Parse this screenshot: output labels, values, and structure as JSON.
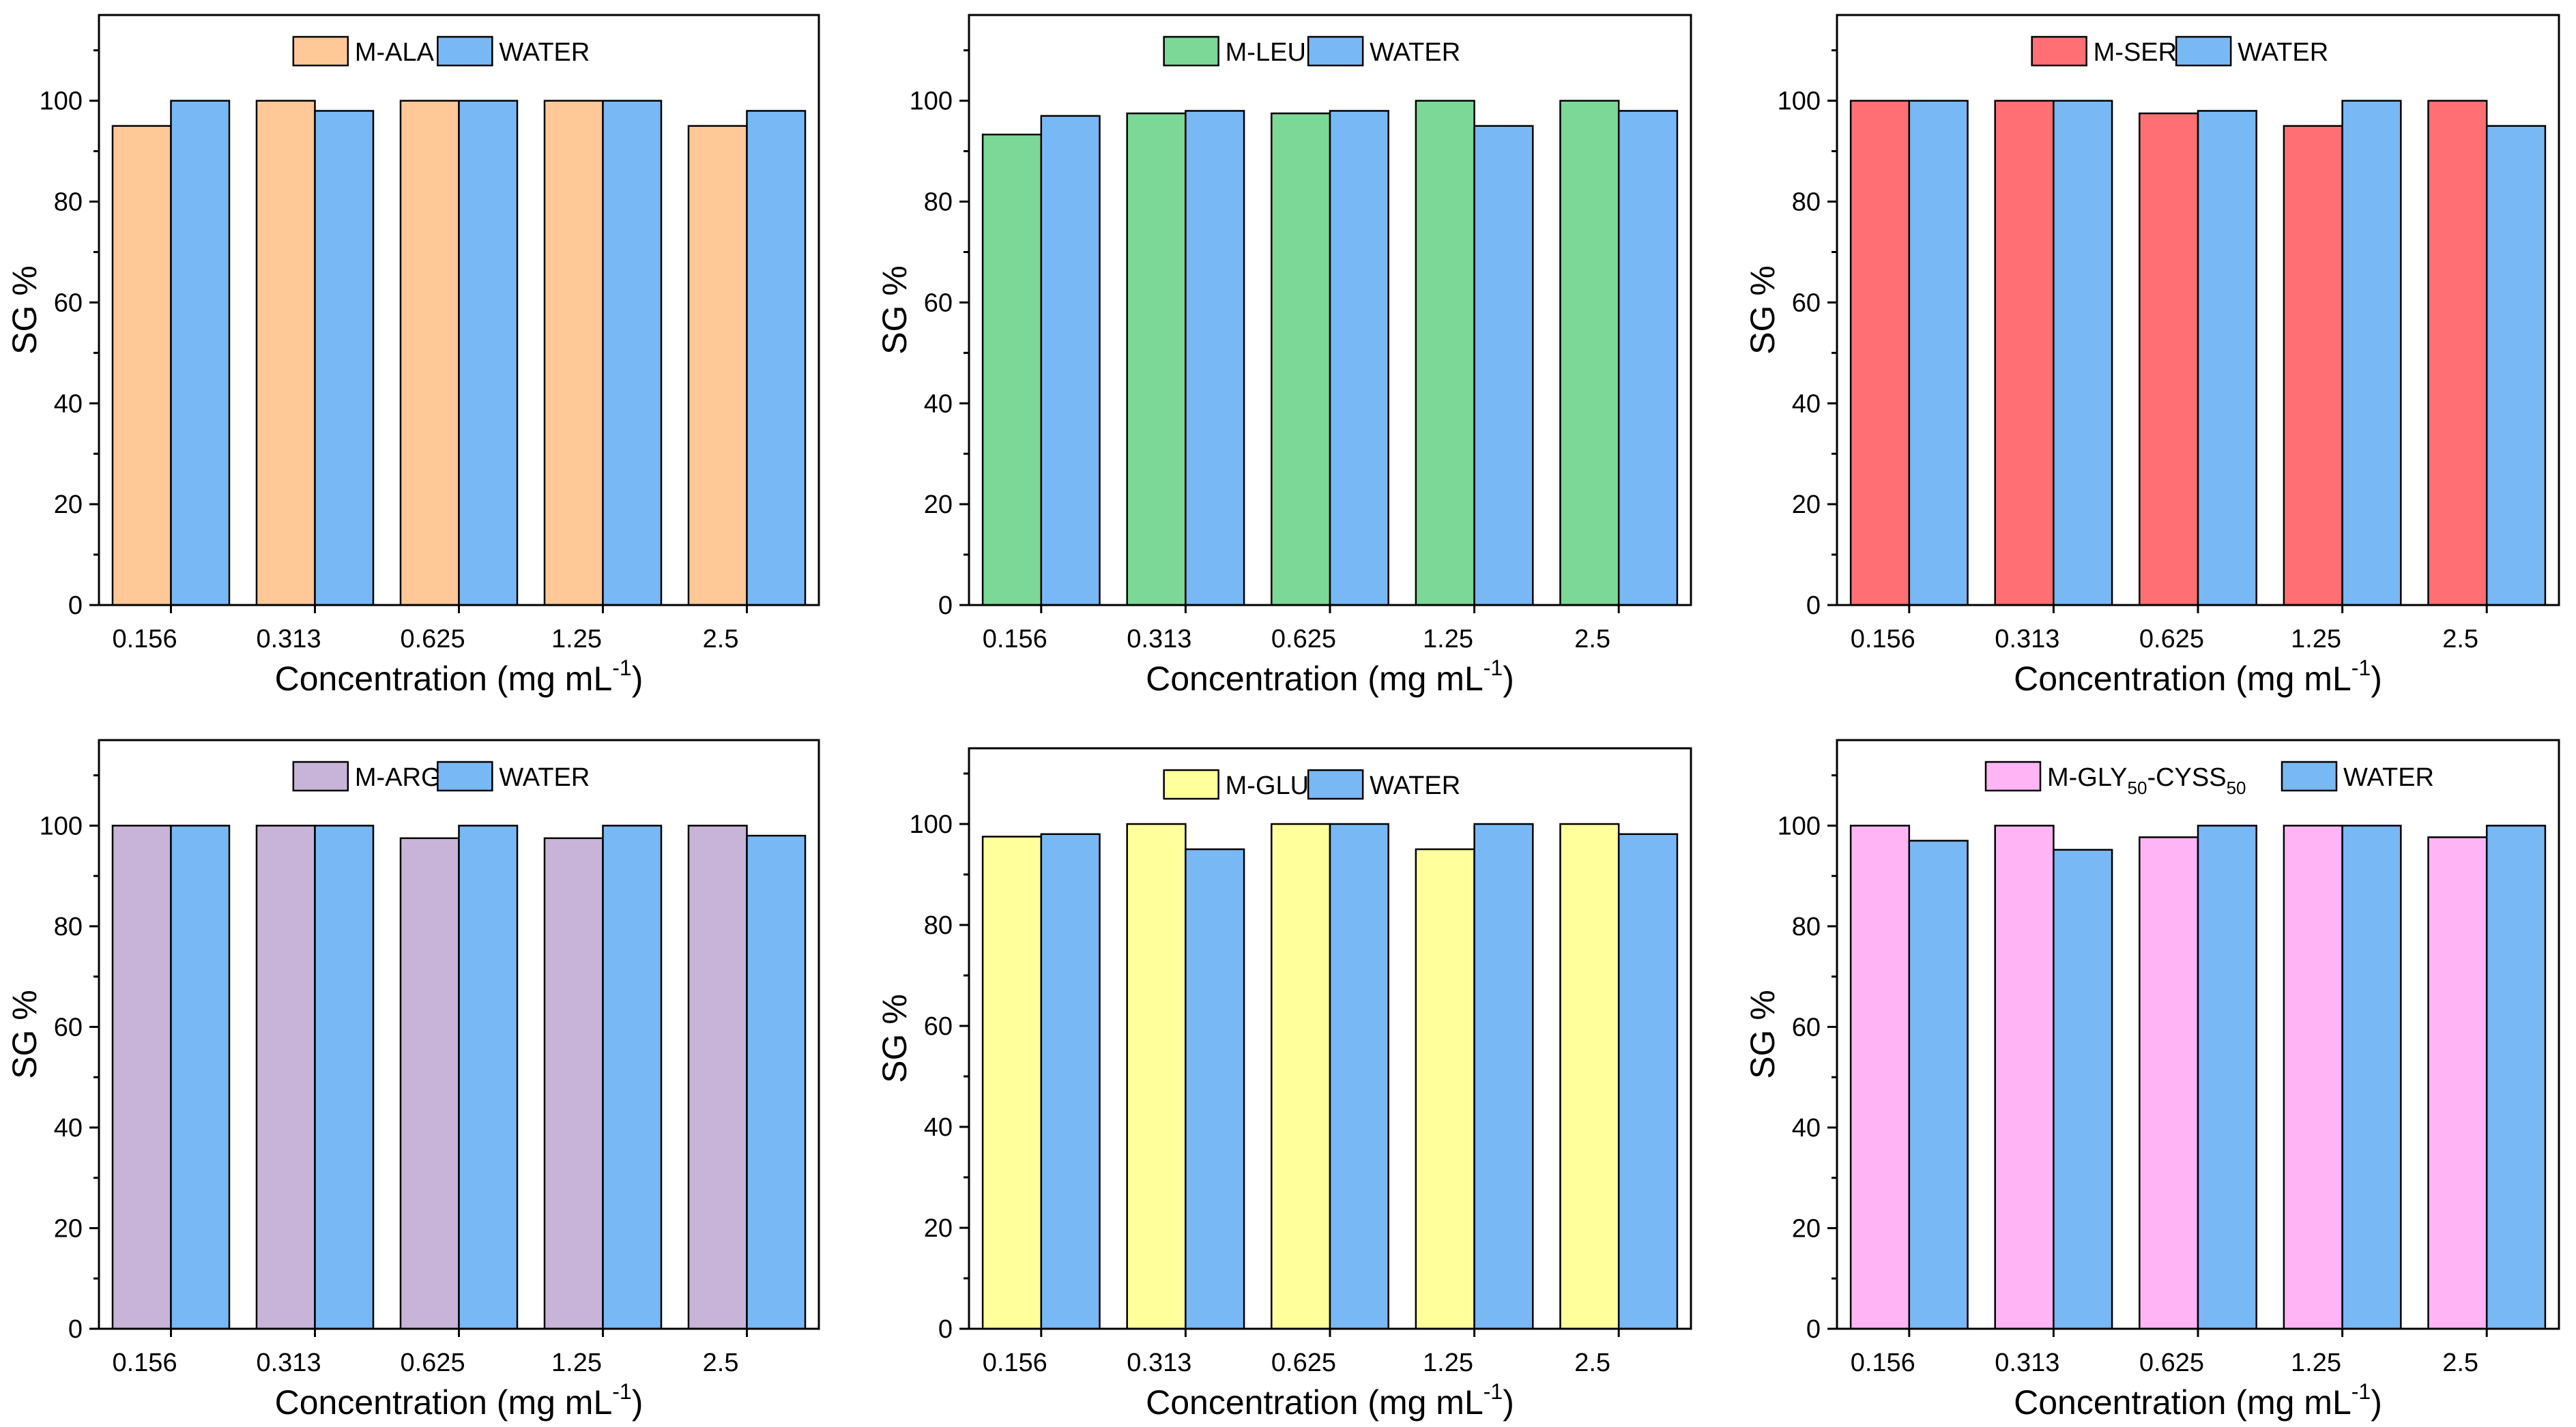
{
  "figure": {
    "series_colors": {
      "M-ALA": "#FFC896",
      "M-LEU": "#7BD896",
      "M-SER": "#FF6F73",
      "M-ARG": "#C8B4D8",
      "M-GLU": "#FFFF9B",
      "M-GLY50-CYSS50": "#FFB4F5",
      "WATER": "#78B8F5"
    }
  },
  "chart_data": [
    {
      "type": "bar",
      "categories": [
        "0.156",
        "0.313",
        "0.625",
        "1.25",
        "2.5"
      ],
      "series": [
        {
          "name": "M-ALA",
          "values": [
            95,
            100,
            100,
            100,
            95
          ],
          "color": "#FFC896"
        },
        {
          "name": "WATER",
          "values": [
            100,
            98,
            100,
            100,
            98
          ],
          "color": "#78B8F5"
        }
      ],
      "legend": [
        "M-ALA",
        "WATER"
      ],
      "xlabel": "Concentration (mg mL",
      "xlabel_sup": "-1",
      "xlabel_end": ")",
      "ylabel": "SG %",
      "ylim": [
        0,
        117
      ],
      "yticks": [
        0,
        20,
        40,
        60,
        80,
        100
      ],
      "grid": false
    },
    {
      "type": "bar",
      "categories": [
        "0.156",
        "0.313",
        "0.625",
        "1.25",
        "2.5"
      ],
      "series": [
        {
          "name": "M-LEU",
          "values": [
            93.3,
            97.5,
            97.5,
            100,
            100
          ],
          "color": "#7BD896"
        },
        {
          "name": "WATER",
          "values": [
            97,
            98,
            98,
            95,
            98
          ],
          "color": "#78B8F5"
        }
      ],
      "legend": [
        "M-LEU",
        "WATER"
      ],
      "xlabel": "Concentration (mg mL",
      "xlabel_sup": "-1",
      "xlabel_end": ")",
      "ylabel": "SG %",
      "ylim": [
        0,
        117
      ],
      "yticks": [
        0,
        20,
        40,
        60,
        80,
        100
      ],
      "grid": false
    },
    {
      "type": "bar",
      "categories": [
        "0.156",
        "0.313",
        "0.625",
        "1.25",
        "2.5"
      ],
      "series": [
        {
          "name": "M-SER",
          "values": [
            100,
            100,
            97.5,
            95,
            100
          ],
          "color": "#FF6F73"
        },
        {
          "name": "WATER",
          "values": [
            100,
            100,
            98,
            100,
            95
          ],
          "color": "#78B8F5"
        }
      ],
      "legend": [
        "M-SER",
        "WATER"
      ],
      "xlabel": "Concentration (mg mL",
      "xlabel_sup": "-1",
      "xlabel_end": ")",
      "ylabel": "SG %",
      "ylim": [
        0,
        117
      ],
      "yticks": [
        0,
        20,
        40,
        60,
        80,
        100
      ],
      "grid": false
    },
    {
      "type": "bar",
      "categories": [
        "0.156",
        "0.313",
        "0.625",
        "1.25",
        "2.5"
      ],
      "series": [
        {
          "name": "M-ARG",
          "values": [
            100,
            100,
            97.5,
            97.5,
            100
          ],
          "color": "#C8B4D8"
        },
        {
          "name": "WATER",
          "values": [
            100,
            100,
            100,
            100,
            98
          ],
          "color": "#78B8F5"
        }
      ],
      "legend": [
        "M-ARG",
        "WATER"
      ],
      "xlabel": "Concentration (mg mL",
      "xlabel_sup": "-1",
      "xlabel_end": ")",
      "ylabel": "SG %",
      "ylim": [
        0,
        117
      ],
      "yticks": [
        0,
        20,
        40,
        60,
        80,
        100
      ],
      "grid": false
    },
    {
      "type": "bar",
      "categories": [
        "0.156",
        "0.313",
        "0.625",
        "1.25",
        "2.5"
      ],
      "series": [
        {
          "name": "M-GLU",
          "values": [
            97.5,
            100,
            100,
            95,
            100
          ],
          "color": "#FFFF9B"
        },
        {
          "name": "WATER",
          "values": [
            98,
            95,
            100,
            100,
            98
          ],
          "color": "#78B8F5"
        }
      ],
      "legend": [
        "M-GLU",
        "WATER"
      ],
      "xlabel": "Concentration (mg mL",
      "xlabel_sup": "-1",
      "xlabel_end": ")",
      "ylabel": "SG %",
      "ylim": [
        0,
        115
      ],
      "yticks": [
        0,
        20,
        40,
        60,
        80,
        100
      ],
      "grid": false
    },
    {
      "type": "bar",
      "categories": [
        "0.156",
        "0.313",
        "0.625",
        "1.25",
        "2.5"
      ],
      "series": [
        {
          "name": "M-GLY50-CYSS50",
          "values": [
            100,
            100,
            97.7,
            100,
            97.7
          ],
          "color": "#FFB4F5"
        },
        {
          "name": "WATER",
          "values": [
            97,
            95.2,
            100,
            100,
            100
          ],
          "color": "#78B8F5"
        }
      ],
      "legend": [
        "M-GLY50-CYSS50",
        "WATER"
      ],
      "legend_text": {
        "base": "M-GLY",
        "sub1": "50",
        "mid": "-CYSS",
        "sub2": "50",
        "second": "WATER"
      },
      "xlabel": "Concentration (mg mL",
      "xlabel_sup": "-1",
      "xlabel_end": ")",
      "ylabel": "SG %",
      "ylim": [
        0,
        117
      ],
      "yticks": [
        0,
        20,
        40,
        60,
        80,
        100
      ],
      "grid": false
    }
  ]
}
